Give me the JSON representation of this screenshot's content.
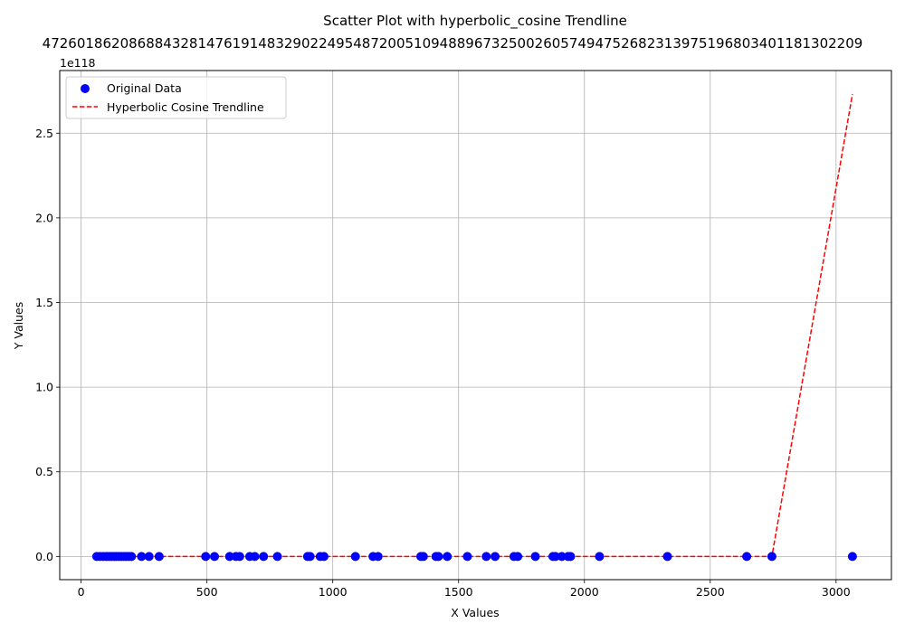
{
  "chart_data": {
    "type": "scatter",
    "title": "Scatter Plot with hyperbolic_cosine Trendline",
    "overflow_label": "47260186208688432814761914832902249548720051094889673250026057494752682313975196803401181302209",
    "xlabel": "X Values",
    "ylabel": "Y Values",
    "y_offset_label": "1e118",
    "xlim": [
      -85,
      3220
    ],
    "ylim": [
      -0.137,
      2.87
    ],
    "y_scale_exponent": 118,
    "x_ticks": [
      0,
      500,
      1000,
      1500,
      2000,
      2500,
      3000
    ],
    "x_tick_labels": [
      "0",
      "500",
      "1000",
      "1500",
      "2000",
      "2500",
      "3000"
    ],
    "y_ticks": [
      0.0,
      0.5,
      1.0,
      1.5,
      2.0,
      2.5
    ],
    "y_tick_labels": [
      "0.0",
      "0.5",
      "1.0",
      "1.5",
      "2.0",
      "2.5"
    ],
    "grid": true,
    "legend_position": "top-left",
    "series": [
      {
        "name": "Original Data",
        "kind": "scatter",
        "color": "#0000ff",
        "x": [
          62,
          75,
          88,
          100,
          110,
          120,
          130,
          140,
          150,
          160,
          170,
          180,
          190,
          200,
          240,
          270,
          310,
          495,
          530,
          590,
          615,
          630,
          670,
          690,
          725,
          780,
          900,
          910,
          950,
          965,
          1090,
          1160,
          1180,
          1350,
          1360,
          1410,
          1420,
          1455,
          1535,
          1610,
          1645,
          1720,
          1735,
          1805,
          1875,
          1885,
          1910,
          1935,
          1945,
          2060,
          2330,
          2645,
          2745,
          3065
        ],
        "y": [
          0,
          0,
          0,
          0,
          0,
          0,
          0,
          0,
          0,
          0,
          0,
          0,
          0,
          0,
          0,
          0,
          0,
          0,
          0,
          0,
          0,
          0,
          0,
          0,
          0,
          0,
          0,
          0,
          0,
          0,
          0,
          0,
          0,
          0,
          0,
          0,
          0,
          0,
          0,
          0,
          0,
          0,
          0,
          0,
          0,
          0,
          0,
          0,
          0,
          0,
          0,
          0,
          0,
          0
        ]
      },
      {
        "name": "Hyperbolic Cosine Trendline",
        "kind": "line",
        "color": "#ff0000",
        "dash": "dashed",
        "x": [
          62,
          2745,
          3065
        ],
        "y": [
          0,
          0,
          2.73
        ]
      }
    ]
  }
}
